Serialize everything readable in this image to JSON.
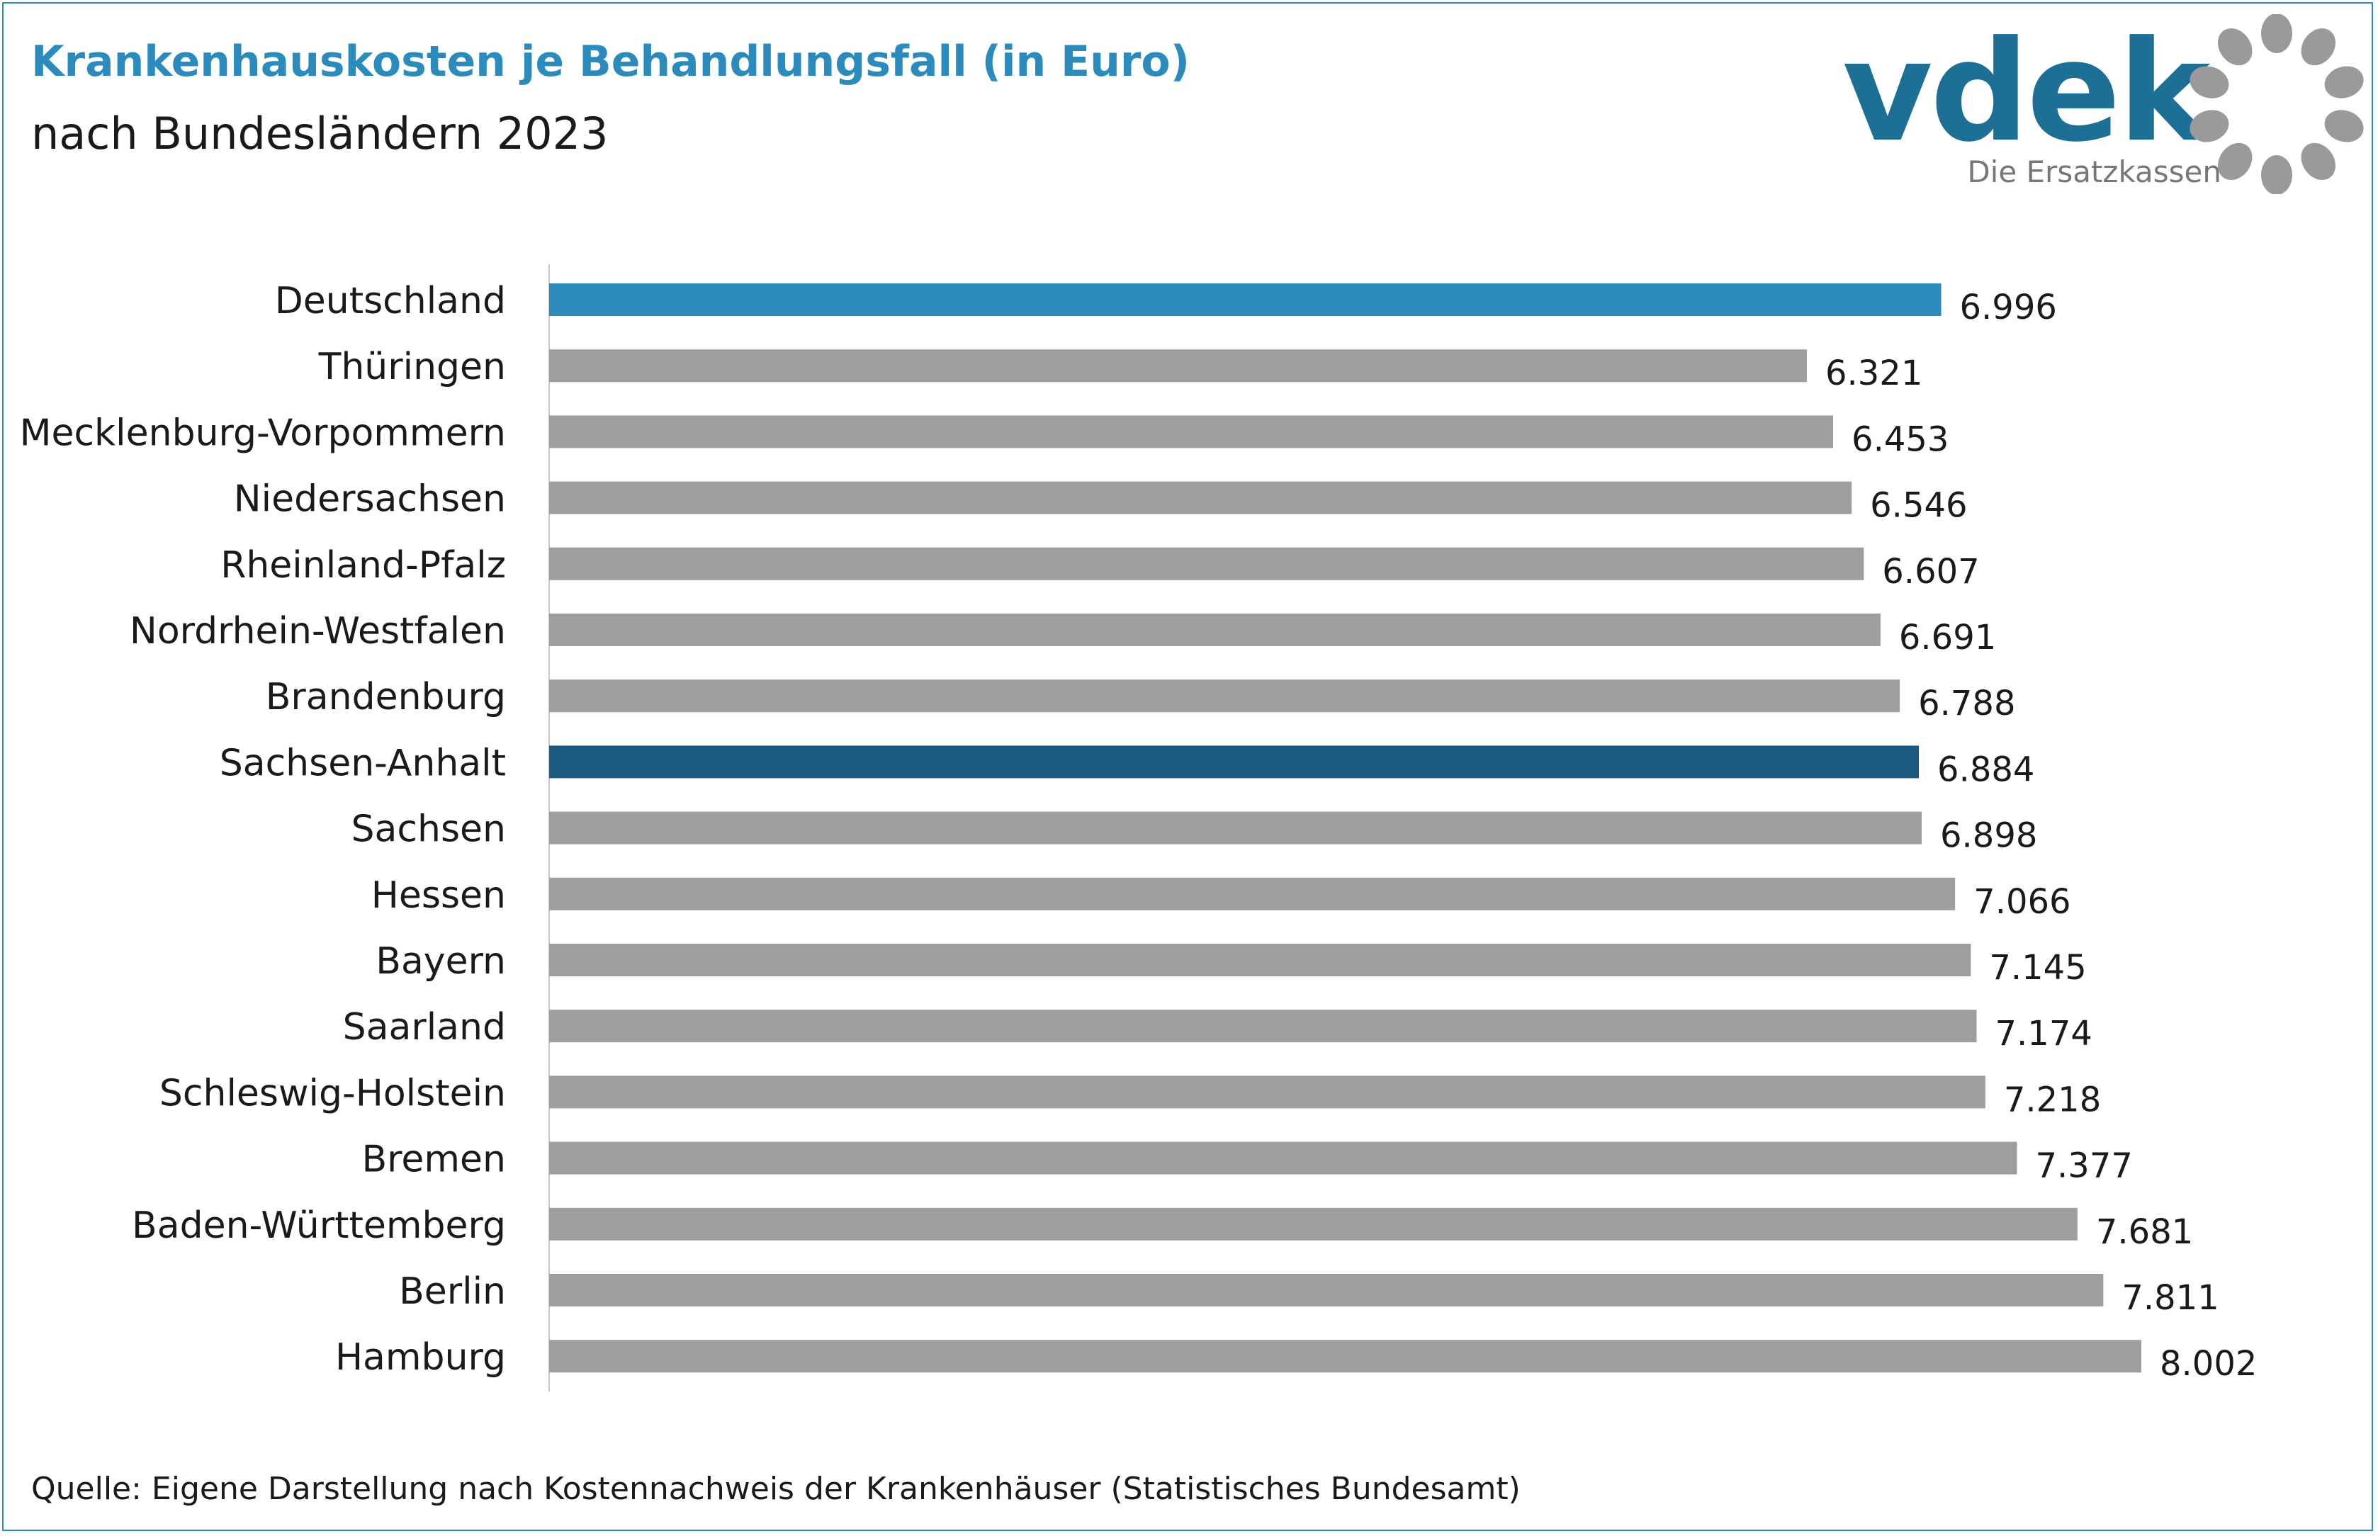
{
  "header": {
    "title": "Krankenhauskosten je Behandlungsfall (in Euro)",
    "subtitle": "nach Bundesländern 2023"
  },
  "logo": {
    "wordmark": "vdek",
    "tagline": "Die Ersatzkassen",
    "icon": "dot-ring-icon",
    "colors": {
      "wordmark": "#1d6f96",
      "ring": "#9a9a9a"
    }
  },
  "source": "Quelle: Eigene Darstellung nach Kostennachweis der Krankenhäuser (Statistisches Bundesamt)",
  "chart_data": {
    "type": "bar",
    "orientation": "horizontal",
    "title": "Krankenhauskosten je Behandlungsfall (in Euro)",
    "subtitle": "nach Bundesländern 2023",
    "categories": [
      "Deutschland",
      "Thüringen",
      "Mecklenburg-Vorpommern",
      "Niedersachsen",
      "Rheinland-Pfalz",
      "Nordrhein-Westfalen",
      "Brandenburg",
      "Sachsen-Anhalt",
      "Sachsen",
      "Hessen",
      "Bayern",
      "Saarland",
      "Schleswig-Holstein",
      "Bremen",
      "Baden-Württemberg",
      "Berlin",
      "Hamburg"
    ],
    "values": [
      6996,
      6321,
      6453,
      6546,
      6607,
      6691,
      6788,
      6884,
      6898,
      7066,
      7145,
      7174,
      7218,
      7377,
      7681,
      7811,
      8002
    ],
    "value_labels": [
      "6.996",
      "6.321",
      "6.453",
      "6.546",
      "6.607",
      "6.691",
      "6.788",
      "6.884",
      "6.898",
      "7.066",
      "7.145",
      "7.174",
      "7.218",
      "7.377",
      "7.681",
      "7.811",
      "8.002"
    ],
    "xlim": [
      0,
      8002
    ],
    "grid": false,
    "legend": "none",
    "colors": {
      "default": "#9e9e9e",
      "highlight": "#2b8bbd",
      "emphasis": "#1b5a80",
      "axis": "#c8c8c8",
      "text": "#1a1a1a"
    },
    "highlights": {
      "Deutschland": "highlight",
      "Sachsen-Anhalt": "emphasis"
    }
  }
}
